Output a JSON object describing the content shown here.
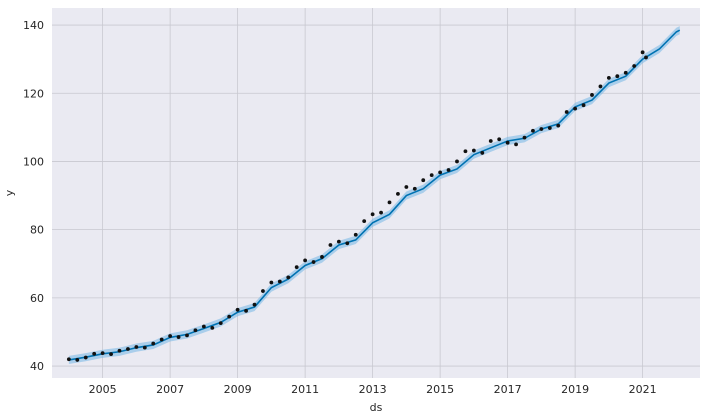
{
  "chart_data": {
    "type": "line",
    "title": "",
    "xlabel": "ds",
    "ylabel": "y",
    "xlim": [
      2003.5,
      2022.7
    ],
    "ylim": [
      36.5,
      145
    ],
    "x_ticks": [
      2005,
      2007,
      2009,
      2011,
      2013,
      2015,
      2017,
      2019,
      2021
    ],
    "y_ticks": [
      40,
      60,
      80,
      100,
      120,
      140
    ],
    "grid": true,
    "colors": {
      "background": "#eaeaf2",
      "grid": "#c8c8d0",
      "forecast_line": "#0072b2",
      "uncertainty_band": "#74b7e6",
      "observations": "#111111"
    },
    "series": [
      {
        "role": "forecast",
        "x": [
          2004.0,
          2004.5,
          2005.0,
          2005.5,
          2006.0,
          2006.5,
          2007.0,
          2007.5,
          2008.0,
          2008.5,
          2009.0,
          2009.5,
          2010.0,
          2010.5,
          2011.0,
          2011.5,
          2012.0,
          2012.5,
          2013.0,
          2013.5,
          2014.0,
          2014.5,
          2015.0,
          2015.5,
          2016.0,
          2016.5,
          2017.0,
          2017.5,
          2018.0,
          2018.5,
          2019.0,
          2019.5,
          2020.0,
          2020.5,
          2021.0,
          2021.5,
          2022.0,
          2022.1
        ],
        "y": [
          41.8,
          42.6,
          43.6,
          44.2,
          45.4,
          46.2,
          48.4,
          49.3,
          51.0,
          52.8,
          55.8,
          57.3,
          63.0,
          65.5,
          69.5,
          71.5,
          75.5,
          77.0,
          82.0,
          84.5,
          90.0,
          92.0,
          96.0,
          97.8,
          102.0,
          104.0,
          106.0,
          106.8,
          109.5,
          111.0,
          116.0,
          118.0,
          123.0,
          125.0,
          130.0,
          133.0,
          138.0,
          138.5
        ],
        "band_halfwidth": 1.2
      },
      {
        "role": "observations",
        "x": [
          2004.0,
          2004.25,
          2004.5,
          2004.75,
          2005.0,
          2005.25,
          2005.5,
          2005.75,
          2006.0,
          2006.25,
          2006.5,
          2006.75,
          2007.0,
          2007.25,
          2007.5,
          2007.75,
          2008.0,
          2008.25,
          2008.5,
          2008.75,
          2009.0,
          2009.25,
          2009.5,
          2009.75,
          2010.0,
          2010.25,
          2010.5,
          2010.75,
          2011.0,
          2011.25,
          2011.5,
          2011.75,
          2012.0,
          2012.25,
          2012.5,
          2012.75,
          2013.0,
          2013.25,
          2013.5,
          2013.75,
          2014.0,
          2014.25,
          2014.5,
          2014.75,
          2015.0,
          2015.25,
          2015.5,
          2015.75,
          2016.0,
          2016.25,
          2016.5,
          2016.75,
          2017.0,
          2017.25,
          2017.5,
          2017.75,
          2018.0,
          2018.25,
          2018.5,
          2018.75,
          2019.0,
          2019.25,
          2019.5,
          2019.75,
          2020.0,
          2020.25,
          2020.5,
          2020.75,
          2021.0,
          2021.1
        ],
        "y": [
          42.0,
          41.8,
          42.5,
          43.6,
          43.8,
          43.5,
          44.5,
          45.0,
          45.6,
          45.4,
          46.6,
          47.8,
          48.8,
          48.5,
          49.0,
          50.5,
          51.6,
          51.2,
          52.6,
          54.5,
          56.5,
          56.2,
          58.0,
          62.0,
          64.5,
          64.8,
          66.0,
          69.0,
          71.0,
          70.5,
          72.0,
          75.5,
          76.5,
          76.0,
          78.5,
          82.5,
          84.5,
          85.0,
          88.0,
          90.5,
          92.5,
          92.0,
          94.5,
          96.0,
          96.8,
          97.5,
          100.0,
          103.0,
          103.2,
          102.5,
          106.0,
          106.5,
          105.5,
          105.0,
          107.0,
          109.0,
          109.5,
          109.8,
          110.5,
          114.5,
          115.5,
          116.5,
          119.5,
          122.0,
          124.5,
          125.0,
          126.0,
          128.0,
          132.0,
          130.5
        ]
      }
    ]
  }
}
